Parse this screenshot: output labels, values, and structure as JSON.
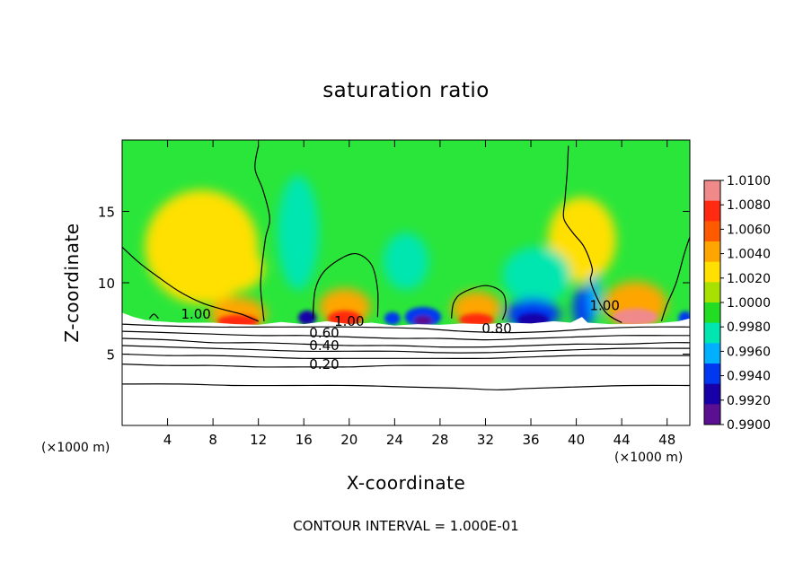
{
  "figure": {
    "title": "saturation ratio",
    "footer": "CONTOUR INTERVAL = 1.000E-01"
  },
  "chart_data": {
    "type": "heatmap",
    "title": "saturation ratio",
    "xlabel": "X-coordinate",
    "ylabel": "Z-coordinate",
    "x_unit_label": "(×1000 m)",
    "xlim": [
      0,
      50
    ],
    "ylim": [
      0,
      20
    ],
    "x_ticks": [
      4,
      8,
      12,
      16,
      20,
      24,
      28,
      32,
      36,
      40,
      44,
      48
    ],
    "x_tick_labels": [
      "4",
      "8",
      "12",
      "16",
      "20",
      "24",
      "28",
      "32",
      "36",
      "40",
      "44",
      "48"
    ],
    "y_ticks": [
      5,
      10,
      15
    ],
    "y_tick_labels": [
      "5",
      "10",
      "15"
    ],
    "colorbar": {
      "min": 0.99,
      "max": 1.01,
      "labels": [
        "1.0100",
        "1.0080",
        "1.0060",
        "1.0040",
        "1.0020",
        "1.0000",
        "0.9980",
        "0.9960",
        "0.9940",
        "0.9920",
        "0.9900"
      ],
      "colors": [
        "#f08a8a",
        "#ff2a10",
        "#ff5a00",
        "#ffa500",
        "#ffe000",
        "#a8e000",
        "#22dd22",
        "#00e6b0",
        "#00b0ff",
        "#0038f0",
        "#1800a8",
        "#5a1090"
      ]
    },
    "background_field_color": "#2ae63a",
    "contour_interval": 0.1,
    "contour_labels": [
      {
        "text": "1.00",
        "x": 6.5,
        "y": 7.6
      },
      {
        "text": "1.00",
        "x": 20,
        "y": 7.1
      },
      {
        "text": "1.00",
        "x": 42.5,
        "y": 8.2
      },
      {
        "text": "0.80",
        "x": 33,
        "y": 6.6
      },
      {
        "text": "0.60",
        "x": 17.8,
        "y": 6.3
      },
      {
        "text": "0.40",
        "x": 17.8,
        "y": 5.4
      },
      {
        "text": "0.20",
        "x": 17.8,
        "y": 4.1
      }
    ],
    "cells": [
      {
        "x": 7,
        "z": 12.5,
        "rx": 5,
        "rz": 4,
        "value": 1.0024
      },
      {
        "x": 10,
        "z": 11,
        "rx": 2.5,
        "rz": 1.6,
        "value": 1.003
      },
      {
        "x": 40.5,
        "z": 13,
        "rx": 3,
        "rz": 3,
        "value": 1.002
      },
      {
        "x": 15.5,
        "z": 13.5,
        "rx": 1.8,
        "rz": 4,
        "value": 0.9978
      },
      {
        "x": 25,
        "z": 11.5,
        "rx": 2,
        "rz": 2,
        "value": 0.9976
      },
      {
        "x": 36.5,
        "z": 10.5,
        "rx": 3,
        "rz": 2,
        "value": 0.9978
      },
      {
        "x": 10.2,
        "z": 7.8,
        "rx": 2.5,
        "rz": 1.2,
        "value": 1.0045
      },
      {
        "x": 10.2,
        "z": 7.3,
        "rx": 1.8,
        "rz": 0.45,
        "value": 1.0082
      },
      {
        "x": 19.6,
        "z": 8.3,
        "rx": 2.3,
        "rz": 1.3,
        "value": 1.004
      },
      {
        "x": 19.6,
        "z": 7.5,
        "rx": 1.5,
        "rz": 0.55,
        "value": 1.0072
      },
      {
        "x": 31.2,
        "z": 8.2,
        "rx": 2.2,
        "rz": 1.2,
        "value": 1.004
      },
      {
        "x": 31.2,
        "z": 7.4,
        "rx": 1.5,
        "rz": 0.45,
        "value": 1.0075
      },
      {
        "x": 45.2,
        "z": 8.5,
        "rx": 2.8,
        "rz": 1.6,
        "value": 1.0042
      },
      {
        "x": 45.2,
        "z": 7.6,
        "rx": 2,
        "rz": 0.6,
        "value": 1.0085
      },
      {
        "x": 16.3,
        "z": 7.55,
        "rx": 0.8,
        "rz": 0.5,
        "value": 0.9925
      },
      {
        "x": 26.5,
        "z": 7.6,
        "rx": 1.6,
        "rz": 0.7,
        "value": 0.994
      },
      {
        "x": 26.5,
        "z": 7.35,
        "rx": 0.8,
        "rz": 0.35,
        "value": 0.9915
      },
      {
        "x": 36.2,
        "z": 7.8,
        "rx": 2.4,
        "rz": 1.1,
        "value": 0.9945
      },
      {
        "x": 36.2,
        "z": 7.4,
        "rx": 1.4,
        "rz": 0.45,
        "value": 0.9918
      },
      {
        "x": 23.8,
        "z": 7.5,
        "rx": 0.7,
        "rz": 0.45,
        "value": 0.9935
      },
      {
        "x": 40.6,
        "z": 8.2,
        "rx": 0.9,
        "rz": 1.5,
        "value": 0.9935
      },
      {
        "x": 41.6,
        "z": 9,
        "rx": 0.5,
        "rz": 1.6,
        "value": 0.9955
      },
      {
        "x": 49.6,
        "z": 7.5,
        "rx": 0.6,
        "rz": 0.5,
        "value": 0.994
      }
    ],
    "contours": [
      [
        [
          0,
          12.5
        ],
        [
          1.5,
          11.4
        ],
        [
          3,
          10.5
        ],
        [
          5,
          9.4
        ],
        [
          7,
          8.6
        ],
        [
          9,
          8.1
        ],
        [
          10.5,
          7.8
        ],
        [
          12,
          7.3
        ]
      ],
      [
        [
          12,
          19.6
        ],
        [
          11.7,
          18
        ],
        [
          12.4,
          16.5
        ],
        [
          13,
          14.5
        ],
        [
          12.6,
          13
        ],
        [
          12.2,
          10
        ],
        [
          12.4,
          8
        ],
        [
          12.5,
          7.3
        ]
      ],
      [
        [
          16.8,
          7.5
        ],
        [
          17,
          9.5
        ],
        [
          17.8,
          10.8
        ],
        [
          19.5,
          11.8
        ],
        [
          20.8,
          12
        ],
        [
          22,
          11.2
        ],
        [
          22.5,
          9.5
        ],
        [
          22.5,
          7.6
        ]
      ],
      [
        [
          29,
          7.5
        ],
        [
          29.2,
          8.6
        ],
        [
          30,
          9.3
        ],
        [
          32,
          9.8
        ],
        [
          33.5,
          9.3
        ],
        [
          33.8,
          8.2
        ],
        [
          33.5,
          7.4
        ]
      ],
      [
        [
          39.3,
          19.6
        ],
        [
          39.2,
          17.8
        ],
        [
          39,
          15.8
        ],
        [
          38.9,
          14.5
        ],
        [
          39.7,
          13.5
        ],
        [
          40.7,
          12.5
        ],
        [
          41.4,
          11
        ],
        [
          41.3,
          10
        ],
        [
          42.5,
          8
        ],
        [
          44,
          7.2
        ]
      ],
      [
        [
          50,
          13.2
        ],
        [
          49.5,
          12
        ],
        [
          48.8,
          10
        ],
        [
          48,
          8.5
        ],
        [
          47.5,
          7.3
        ]
      ],
      [
        [
          2.4,
          7.5
        ],
        [
          2.8,
          7.8
        ],
        [
          3.2,
          7.5
        ]
      ],
      [
        [
          0,
          7.1
        ],
        [
          3,
          7
        ],
        [
          8,
          6.9
        ],
        [
          14,
          6.9
        ],
        [
          20,
          6.9
        ],
        [
          26,
          6.8
        ],
        [
          30,
          6.6
        ],
        [
          34,
          6.5
        ],
        [
          38,
          6.6
        ],
        [
          42,
          6.8
        ],
        [
          46,
          6.9
        ],
        [
          50,
          6.9
        ]
      ],
      [
        [
          0,
          6.6
        ],
        [
          4,
          6.5
        ],
        [
          8,
          6.4
        ],
        [
          12,
          6.3
        ],
        [
          16,
          6.3
        ],
        [
          20,
          6.2
        ],
        [
          24,
          6.1
        ],
        [
          28,
          6.1
        ],
        [
          32,
          6
        ],
        [
          36,
          6.1
        ],
        [
          40,
          6.2
        ],
        [
          44,
          6.3
        ],
        [
          48,
          6.3
        ],
        [
          50,
          6.3
        ]
      ],
      [
        [
          0,
          6.1
        ],
        [
          4,
          6
        ],
        [
          8,
          5.8
        ],
        [
          12,
          5.8
        ],
        [
          16,
          5.7
        ],
        [
          20,
          5.6
        ],
        [
          24,
          5.6
        ],
        [
          28,
          5.5
        ],
        [
          32,
          5.5
        ],
        [
          36,
          5.6
        ],
        [
          40,
          5.7
        ],
        [
          44,
          5.7
        ],
        [
          48,
          5.8
        ],
        [
          50,
          5.8
        ]
      ],
      [
        [
          0,
          5.6
        ],
        [
          4,
          5.5
        ],
        [
          8,
          5.4
        ],
        [
          12,
          5.3
        ],
        [
          16,
          5.2
        ],
        [
          20,
          5.2
        ],
        [
          24,
          5.2
        ],
        [
          28,
          5.1
        ],
        [
          32,
          5.1
        ],
        [
          36,
          5.2
        ],
        [
          40,
          5.3
        ],
        [
          44,
          5.4
        ],
        [
          48,
          5.4
        ],
        [
          50,
          5.4
        ]
      ],
      [
        [
          0,
          5
        ],
        [
          4,
          4.9
        ],
        [
          8,
          4.9
        ],
        [
          12,
          4.8
        ],
        [
          16,
          4.7
        ],
        [
          20,
          4.7
        ],
        [
          24,
          4.7
        ],
        [
          28,
          4.7
        ],
        [
          32,
          4.7
        ],
        [
          36,
          4.8
        ],
        [
          40,
          4.9
        ],
        [
          44,
          4.9
        ],
        [
          48,
          4.9
        ],
        [
          50,
          4.9
        ]
      ],
      [
        [
          0,
          4.3
        ],
        [
          4,
          4.2
        ],
        [
          8,
          4.2
        ],
        [
          12,
          4.1
        ],
        [
          16,
          4.1
        ],
        [
          20,
          4.1
        ],
        [
          24,
          4.2
        ],
        [
          28,
          4.2
        ],
        [
          32,
          4.2
        ],
        [
          36,
          4.2
        ],
        [
          40,
          4.2
        ],
        [
          44,
          4.2
        ],
        [
          48,
          4.2
        ],
        [
          50,
          4.2
        ]
      ],
      [
        [
          0,
          2.9
        ],
        [
          5,
          2.9
        ],
        [
          10,
          2.8
        ],
        [
          15,
          2.8
        ],
        [
          20,
          2.8
        ],
        [
          25,
          2.7
        ],
        [
          30,
          2.6
        ],
        [
          33,
          2.5
        ],
        [
          36,
          2.6
        ],
        [
          40,
          2.7
        ],
        [
          45,
          2.8
        ],
        [
          50,
          2.8
        ]
      ]
    ],
    "ground_profile": [
      [
        0,
        7.9
      ],
      [
        1,
        7.6
      ],
      [
        2,
        7.4
      ],
      [
        3,
        7.3
      ],
      [
        5,
        7.2
      ],
      [
        8,
        7.2
      ],
      [
        10,
        7.1
      ],
      [
        12,
        7.05
      ],
      [
        14,
        7.25
      ],
      [
        16,
        7.1
      ],
      [
        18,
        7.3
      ],
      [
        20,
        7.1
      ],
      [
        22,
        7.2
      ],
      [
        24,
        7.0
      ],
      [
        26,
        7.1
      ],
      [
        28,
        7.05
      ],
      [
        30,
        7.15
      ],
      [
        32,
        7.1
      ],
      [
        34,
        7.2
      ],
      [
        36,
        7.15
      ],
      [
        38,
        7.3
      ],
      [
        39.5,
        7.2
      ],
      [
        40.5,
        7.6
      ],
      [
        41,
        7.2
      ],
      [
        43,
        7.1
      ],
      [
        45,
        7.1
      ],
      [
        47,
        7.15
      ],
      [
        49,
        7.3
      ],
      [
        50,
        7.5
      ]
    ]
  }
}
